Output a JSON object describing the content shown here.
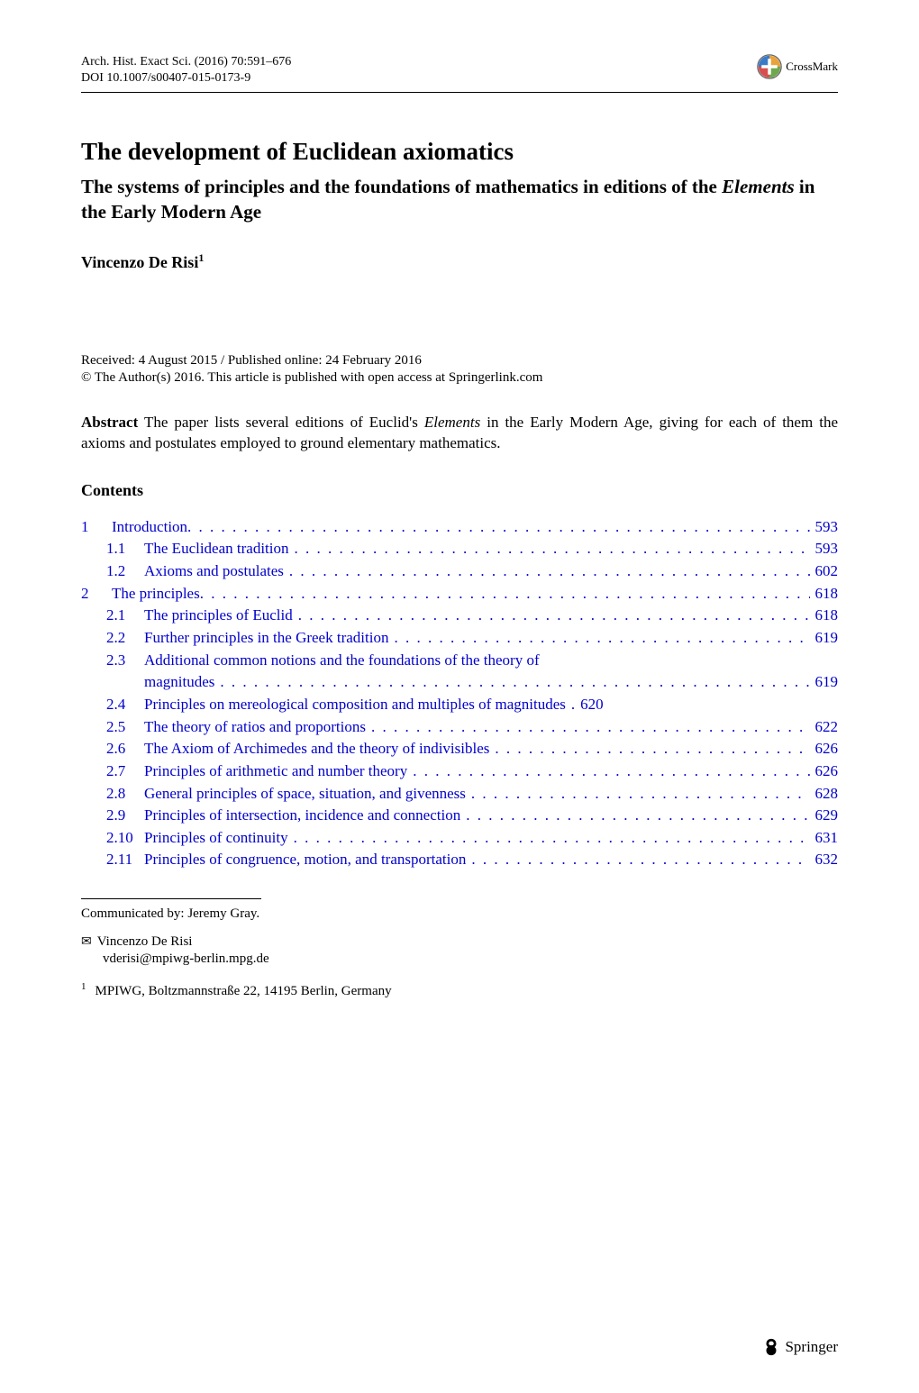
{
  "header": {
    "journal": "Arch. Hist. Exact Sci. (2016) 70:591–676",
    "doi": "DOI 10.1007/s00407-015-0173-9",
    "crossmark": "CrossMark"
  },
  "title": "The development of Euclidean axiomatics",
  "subtitle": "The systems of principles and the foundations of mathematics in editions of the Elements in the Early Modern Age",
  "subtitle_part1": "The systems of principles and the foundations of mathematics in editions of the ",
  "subtitle_italic": "Elements",
  "subtitle_part2": " in the Early Modern Age",
  "author": "Vincenzo De Risi",
  "author_sup": "1",
  "dates": "Received: 4 August 2015 / Published online: 24 February 2016",
  "copyright": "© The Author(s) 2016. This article is published with open access at Springerlink.com",
  "abstract_label": "Abstract",
  "abstract_text_part1": "  The paper lists several editions of Euclid's ",
  "abstract_italic": "Elements",
  "abstract_text_part2": " in the Early Modern Age, giving for each of them the axioms and postulates employed to ground elementary mathematics.",
  "contents_heading": "Contents",
  "toc": [
    {
      "num": "1",
      "text": "Introduction",
      "page": "593",
      "level": 1
    },
    {
      "num": "1.1",
      "text": "The Euclidean tradition",
      "page": "593",
      "level": 2
    },
    {
      "num": "1.2",
      "text": "Axioms and postulates",
      "page": "602",
      "level": 2
    },
    {
      "num": "2",
      "text": "The principles",
      "page": "618",
      "level": 1
    },
    {
      "num": "2.1",
      "text": "The principles of Euclid",
      "page": "618",
      "level": 2
    },
    {
      "num": "2.2",
      "text": "Further principles in the Greek tradition",
      "page": "619",
      "level": 2
    },
    {
      "num": "2.3",
      "text": "Additional common notions and the foundations of the theory of",
      "page": "",
      "level": 2,
      "noPageDots": true
    },
    {
      "num": "",
      "text": "magnitudes",
      "page": "619",
      "level": 3
    },
    {
      "num": "2.4",
      "text": "Principles on mereological composition and multiples of magnitudes",
      "page": "620",
      "level": 2,
      "shortDots": true
    },
    {
      "num": "2.5",
      "text": "The theory of ratios and proportions",
      "page": "622",
      "level": 2
    },
    {
      "num": "2.6",
      "text": "The Axiom of Archimedes and the theory of indivisibles",
      "page": "626",
      "level": 2
    },
    {
      "num": "2.7",
      "text": "Principles of arithmetic and number theory",
      "page": "626",
      "level": 2
    },
    {
      "num": "2.8",
      "text": "General principles of space, situation, and givenness",
      "page": "628",
      "level": 2
    },
    {
      "num": "2.9",
      "text": "Principles of intersection, incidence and connection",
      "page": "629",
      "level": 2
    },
    {
      "num": "2.10",
      "text": "Principles of continuity",
      "page": "631",
      "level": 2
    },
    {
      "num": "2.11",
      "text": "Principles of congruence, motion, and transportation",
      "page": "632",
      "level": 2
    }
  ],
  "communicated": "Communicated by: Jeremy Gray.",
  "corr_author": "Vincenzo De Risi",
  "corr_email": "vderisi@mpiwg-berlin.mpg.de",
  "aff_num": "1",
  "affiliation": "MPIWG, Boltzmannstraße 22, 14195 Berlin, Germany",
  "springer": "Springer",
  "colors": {
    "link": "#0000cc",
    "text": "#000000",
    "background": "#ffffff"
  }
}
